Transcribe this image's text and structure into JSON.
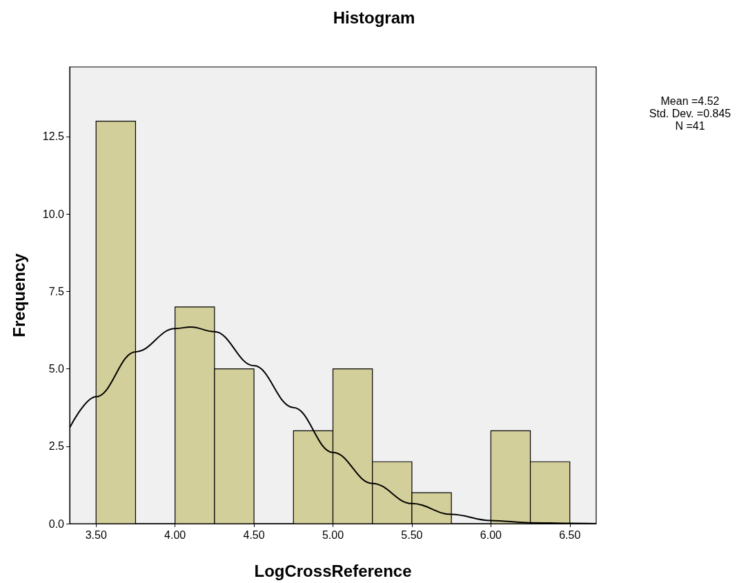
{
  "chart_data": {
    "type": "histogram",
    "title": "Histogram",
    "xlabel": "LogCrossReference",
    "ylabel": "Frequency",
    "bins": [
      3.5,
      3.75,
      4.0,
      4.25,
      4.5,
      4.75,
      5.0,
      5.25,
      5.5,
      5.75,
      6.0,
      6.25,
      6.5
    ],
    "values": [
      13,
      0,
      7,
      5,
      0,
      3,
      5,
      2,
      1,
      0,
      3,
      2
    ],
    "color": "#d3cf9a",
    "series": [
      {
        "type": "line",
        "color": "#000000",
        "marker": "none",
        "line_style": "solid",
        "x": [
          3.333,
          3.5,
          3.75,
          4.0,
          4.1,
          4.25,
          4.5,
          4.75,
          5.0,
          5.25,
          5.5,
          5.75,
          6.0,
          6.25,
          6.5,
          6.667
        ],
        "values": [
          3.1,
          4.1,
          5.55,
          6.3,
          6.35,
          6.2,
          5.1,
          3.75,
          2.3,
          1.3,
          0.65,
          0.3,
          0.1,
          0.03,
          0.01,
          0.0
        ]
      }
    ],
    "xlim": [
      3.333,
      6.667
    ],
    "xticks": [
      {
        "value": 3.5,
        "label": "3.50"
      },
      {
        "value": 4.0,
        "label": "4.00"
      },
      {
        "value": 4.5,
        "label": "4.50"
      },
      {
        "value": 5.0,
        "label": "5.00"
      },
      {
        "value": 5.5,
        "label": "5.50"
      },
      {
        "value": 6.0,
        "label": "6.00"
      },
      {
        "value": 6.5,
        "label": "6.50"
      }
    ],
    "ylim": [
      0,
      14.75
    ],
    "yticks": [
      {
        "value": 0,
        "label": "0.0"
      },
      {
        "value": 2.5,
        "label": "2.5"
      },
      {
        "value": 5,
        "label": "5.0"
      },
      {
        "value": 7.5,
        "label": "7.5"
      },
      {
        "value": 10,
        "label": "10.0"
      },
      {
        "value": 12.5,
        "label": "12.5"
      }
    ],
    "grid": false,
    "annotations": [
      "Mean =4.52",
      "Std. Dev. =0.845",
      "N =41"
    ]
  }
}
